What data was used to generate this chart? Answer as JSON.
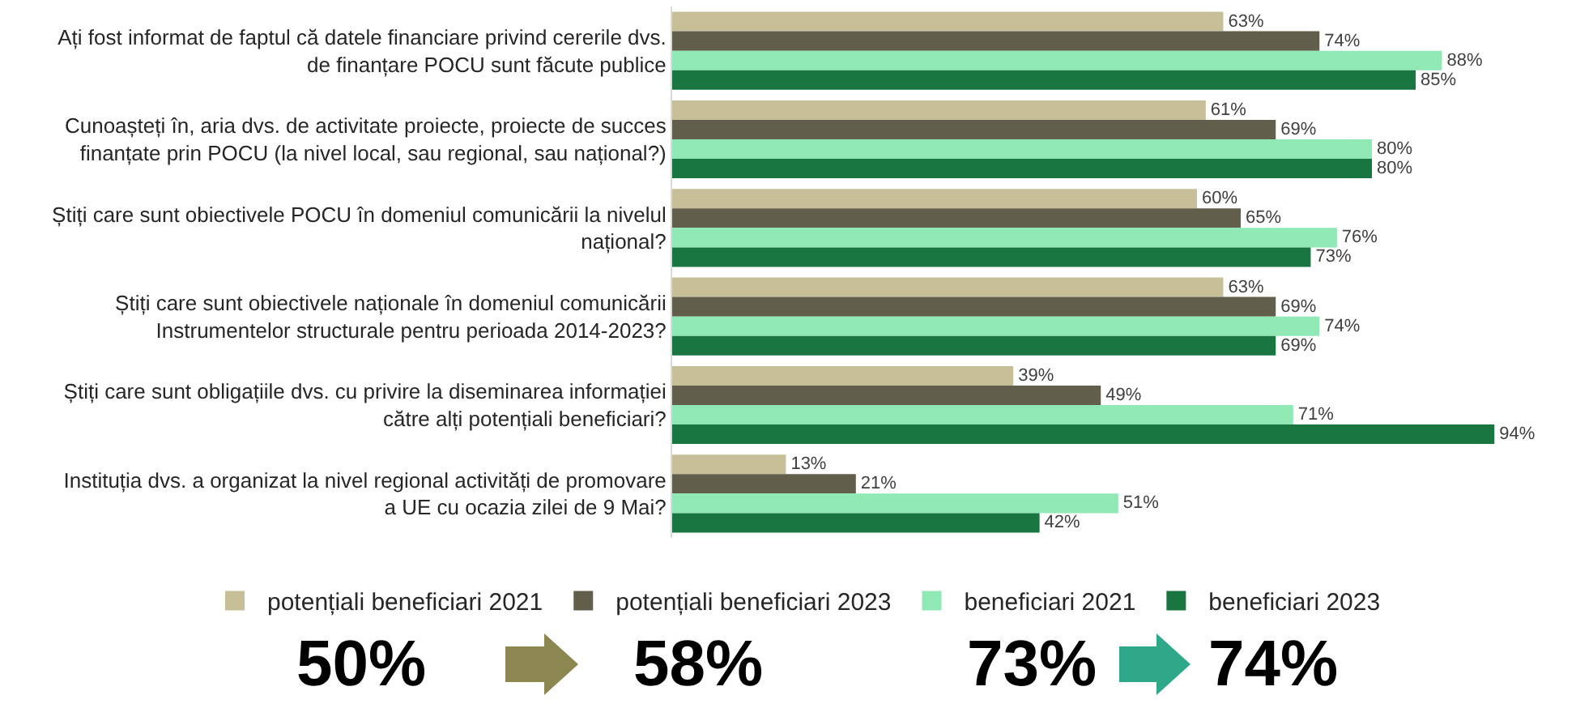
{
  "chart_data": {
    "type": "bar",
    "orientation": "horizontal",
    "categories": [
      "Ați fost informat de faptul că datele financiare privind cererile dvs. de finanțare POCU sunt făcute publice",
      "Cunoașteți în, aria dvs. de activitate proiecte, proiecte de succes finanțate prin POCU (la nivel local, sau regional, sau național?)",
      "Știți care sunt obiectivele POCU în domeniul comunicării la nivelul național?",
      "Știți care sunt obiectivele naționale în domeniul comunicării Instrumentelor structurale pentru perioada 2014-2023?",
      "Știți care sunt obligațiile dvs. cu privire la diseminarea informației către alți potențiali beneficiari?",
      "Instituția dvs. a organizat la nivel regional activități de promovare a UE cu ocazia zilei de 9 Mai?"
    ],
    "series": [
      {
        "name": "potențiali beneficiari 2021",
        "color": "#c6bf97",
        "values": [
          63,
          61,
          60,
          63,
          39,
          13
        ],
        "value_labels": [
          "63%",
          "61%",
          "60%",
          "63%",
          "39%",
          "13%"
        ]
      },
      {
        "name": "potențiali beneficiari 2023",
        "color": "#625e4c",
        "values": [
          74,
          69,
          65,
          69,
          49,
          21
        ],
        "value_labels": [
          "74%",
          "69%",
          "65%",
          "69%",
          "49%",
          "21%"
        ]
      },
      {
        "name": "beneficiari 2021",
        "color": "#90e8b4",
        "values": [
          88,
          80,
          76,
          74,
          71,
          51
        ],
        "value_labels": [
          "88%",
          "80%",
          "76%",
          "74%",
          "71%",
          "51%"
        ]
      },
      {
        "name": "beneficiari 2023",
        "color": "#1a7640",
        "values": [
          85,
          80,
          73,
          69,
          94,
          42
        ],
        "value_labels": [
          "85%",
          "80%",
          "73%",
          "69%",
          "94%",
          "42%"
        ]
      }
    ],
    "legend": "bottom",
    "annotations": [
      "50%",
      "58%",
      "73%",
      "74%"
    ]
  }
}
